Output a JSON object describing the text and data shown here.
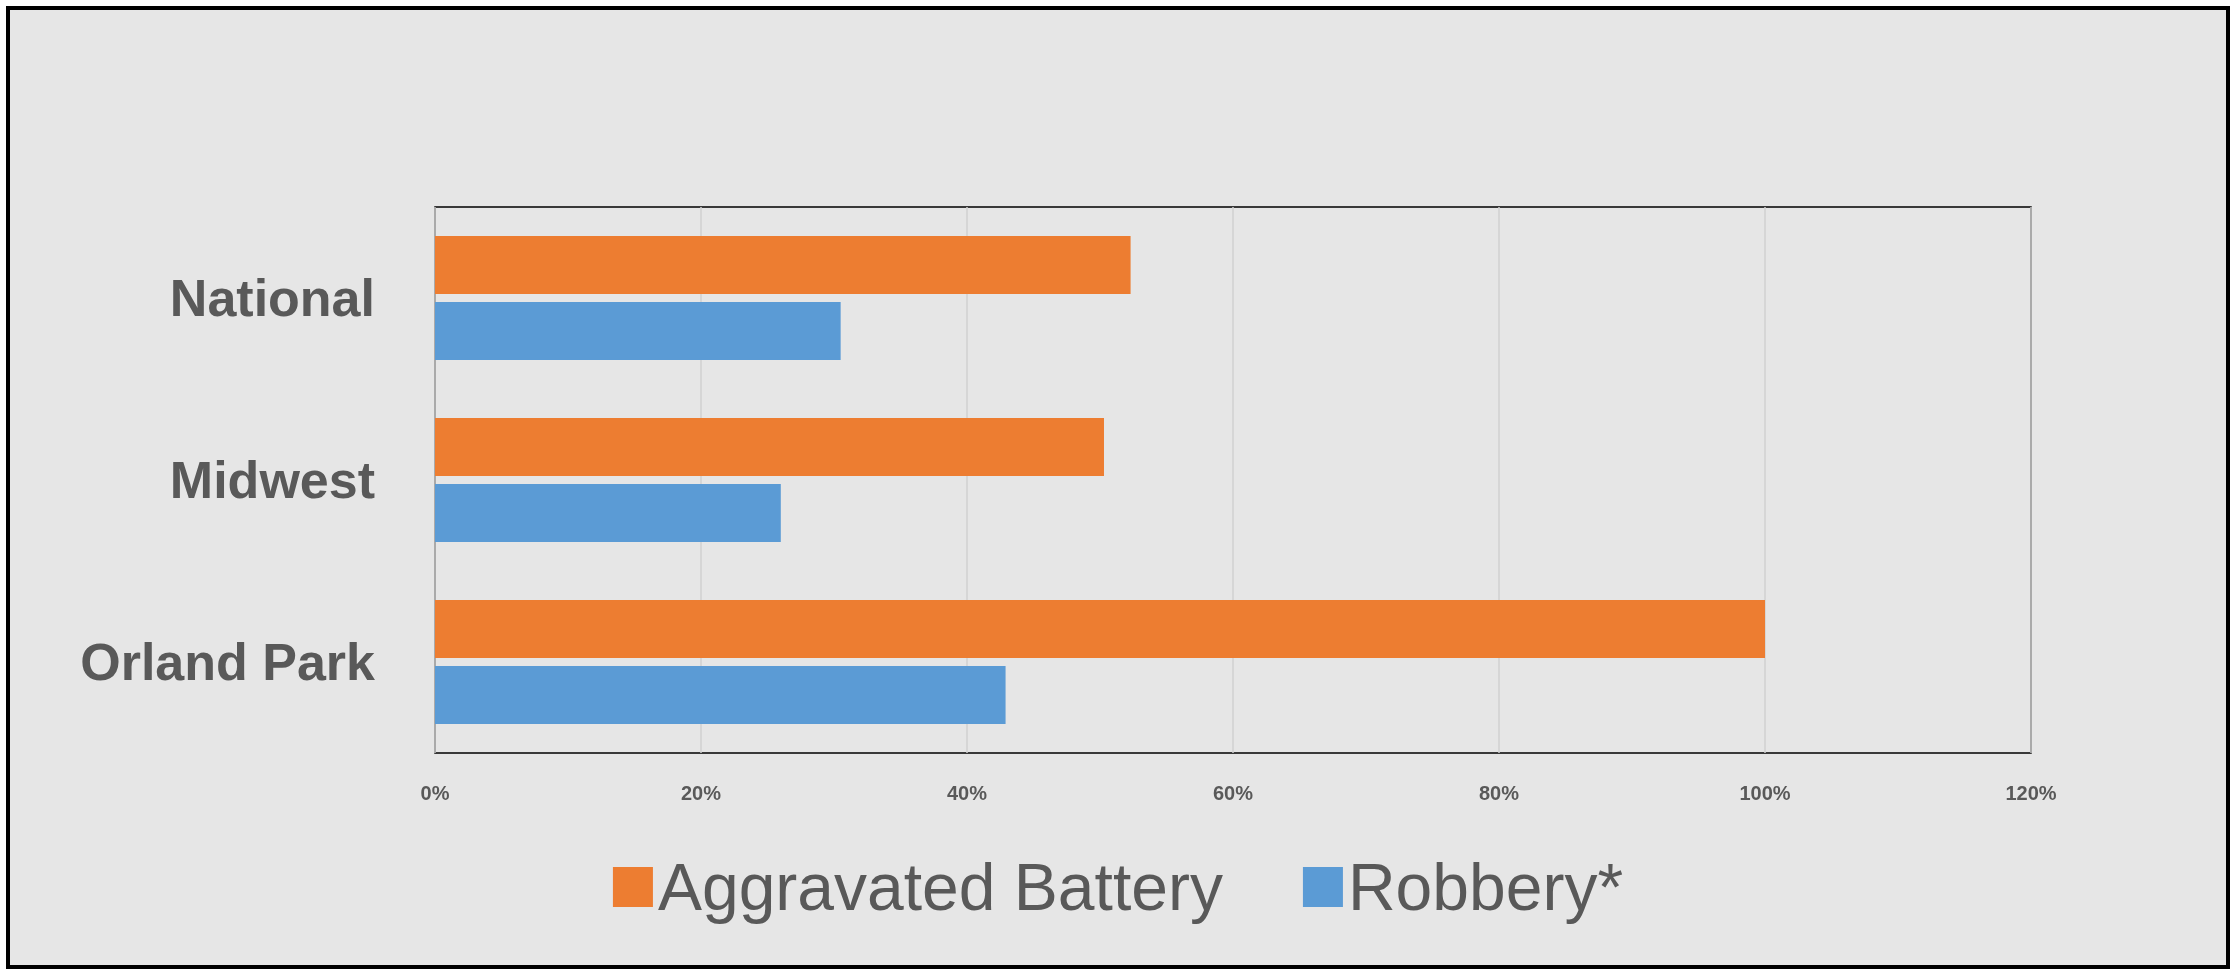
{
  "chart_data": {
    "type": "bar",
    "orientation": "horizontal",
    "categories": [
      "National",
      "Midwest",
      "Orland Park"
    ],
    "series": [
      {
        "name": "Aggravated Battery",
        "color": "#ed7d31",
        "values": [
          52.3,
          50.3,
          100
        ]
      },
      {
        "name": "Robbery*",
        "color": "#5b9bd5",
        "values": [
          30.5,
          26.0,
          42.9
        ]
      }
    ],
    "xlim": [
      0,
      120
    ],
    "xticks": [
      {
        "value": 0,
        "label": "0%"
      },
      {
        "value": 20,
        "label": "20%"
      },
      {
        "value": 40,
        "label": "40%"
      },
      {
        "value": 60,
        "label": "60%"
      },
      {
        "value": 80,
        "label": "80%"
      },
      {
        "value": 100,
        "label": "100%"
      },
      {
        "value": 120,
        "label": "120%"
      }
    ],
    "grid": "x",
    "legend": "bottom"
  }
}
